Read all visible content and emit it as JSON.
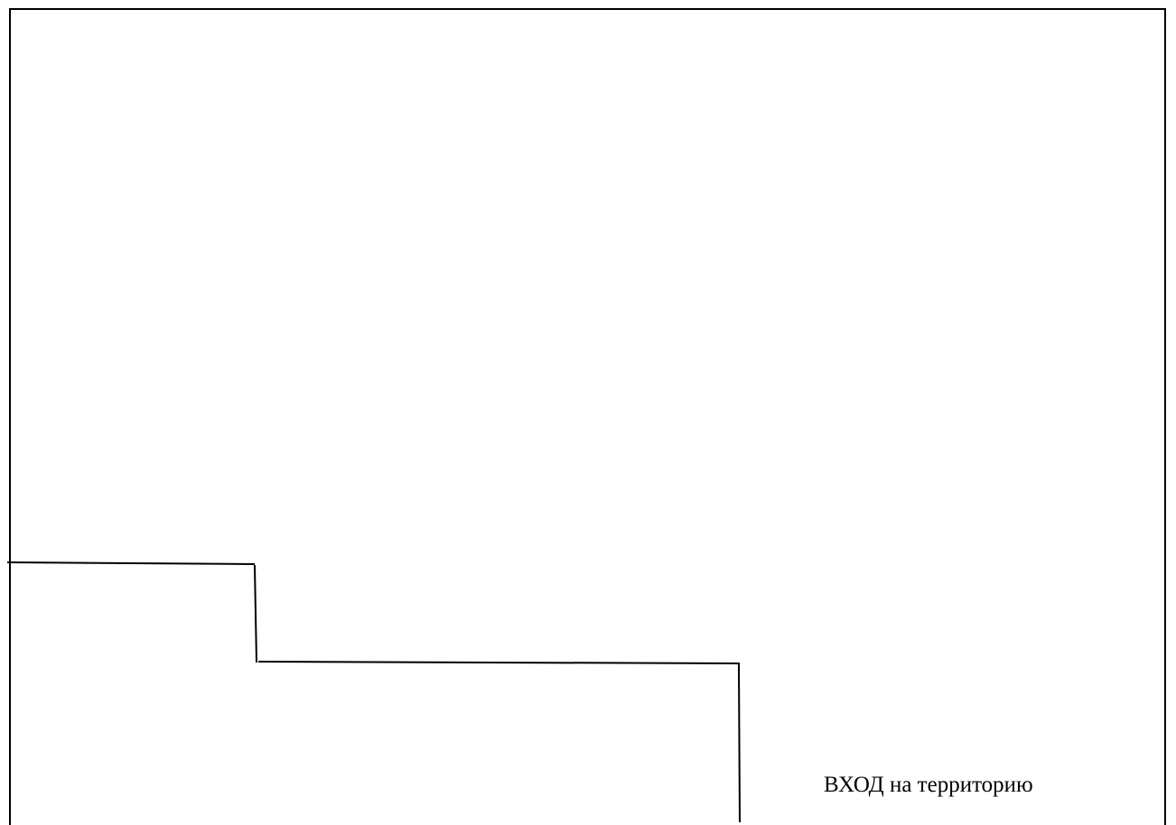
{
  "plan": {
    "line_color": "#000000",
    "background_color": "#ffffff",
    "entrance_label": "ВХОД на территорию"
  }
}
